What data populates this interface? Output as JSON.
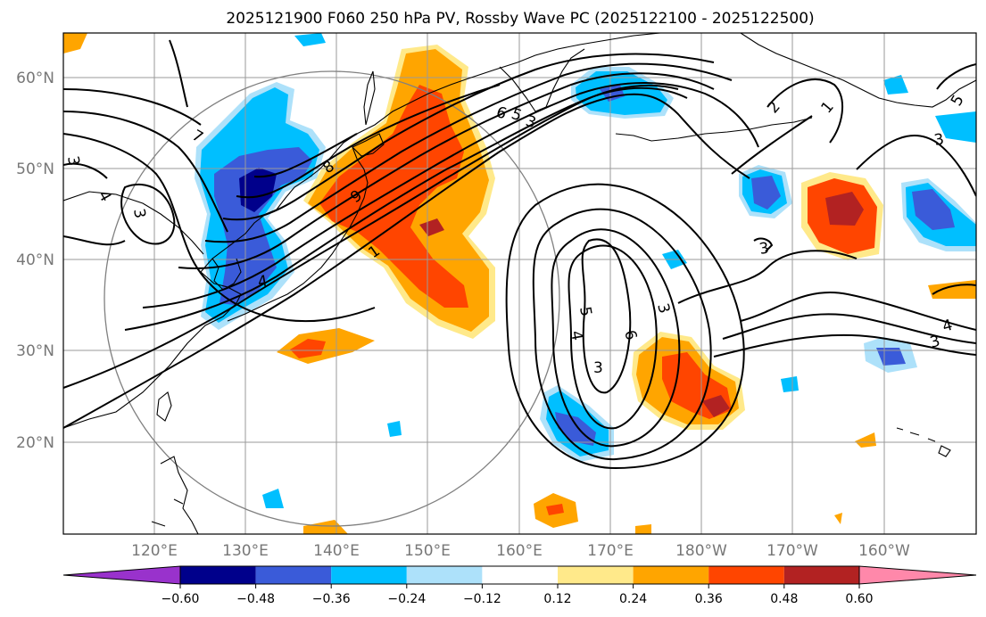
{
  "title": "2025121900 F060 250 hPa PV, Rossby Wave PC (2025122100 - 2025122500)",
  "lat_labels": [
    "60°N",
    "50°N",
    "40°N",
    "30°N",
    "20°N"
  ],
  "lon_labels": [
    "120°E",
    "130°E",
    "140°E",
    "150°E",
    "160°E",
    "170°E",
    "180°W",
    "170°W",
    "160°W"
  ],
  "colorbar": {
    "labels": [
      "−0.60",
      "−0.48",
      "−0.36",
      "−0.24",
      "−0.12",
      "0.12",
      "0.24",
      "0.36",
      "0.48",
      "0.60"
    ],
    "bins": [
      {
        "color": "#9932CC"
      },
      {
        "color": "#00008B"
      },
      {
        "color": "#3A5BD9"
      },
      {
        "color": "#00BFFF"
      },
      {
        "color": "#ADE1FA"
      },
      {
        "color": "#FFFFFF"
      },
      {
        "color": "#FFE98A"
      },
      {
        "color": "#FFA500"
      },
      {
        "color": "#FF4500"
      },
      {
        "color": "#B22222"
      },
      {
        "color": "#FF88AA"
      }
    ]
  },
  "contour_labels": [
    "7",
    "3",
    "4",
    "8",
    "6",
    "5",
    "3",
    "9",
    "1",
    "4",
    "2",
    "1",
    "5",
    "3",
    "3",
    "5",
    "4",
    "6",
    "3",
    "3",
    "4",
    "3",
    "3"
  ]
}
